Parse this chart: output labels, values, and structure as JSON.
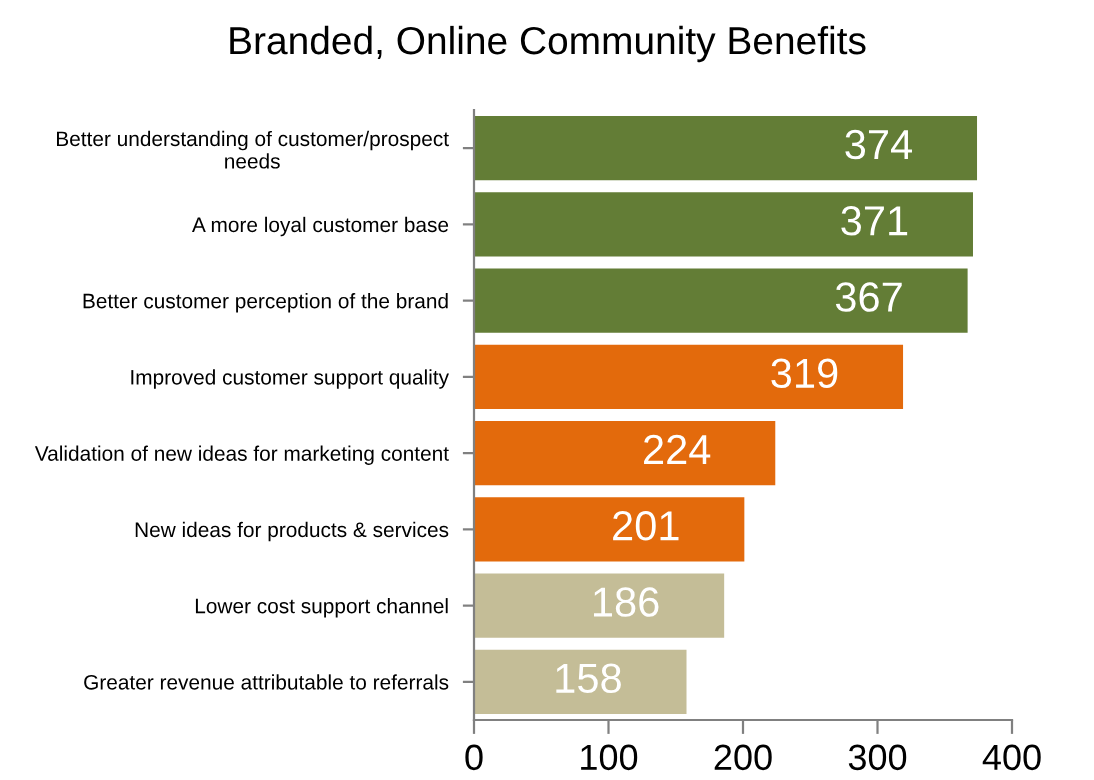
{
  "chart_data": {
    "type": "bar",
    "orientation": "horizontal",
    "title": "Branded, Online Community Benefits",
    "categories": [
      "Better understanding of customer/prospect\nneeds",
      "A more loyal customer base",
      "Better customer perception of the brand",
      "Improved customer support quality",
      "Validation of new ideas for marketing content",
      "New ideas for products & services",
      "Lower cost support channel",
      "Greater revenue attributable to referrals"
    ],
    "values": [
      374,
      371,
      367,
      319,
      224,
      201,
      186,
      158
    ],
    "colors": [
      "#637d36",
      "#637d36",
      "#637d36",
      "#e36a0c",
      "#e36a0c",
      "#e36a0c",
      "#c4bd97",
      "#c4bd97"
    ],
    "xlim": [
      0,
      400
    ],
    "xticks": [
      0,
      100,
      200,
      300,
      400
    ],
    "data_labels": true,
    "grid": false
  }
}
